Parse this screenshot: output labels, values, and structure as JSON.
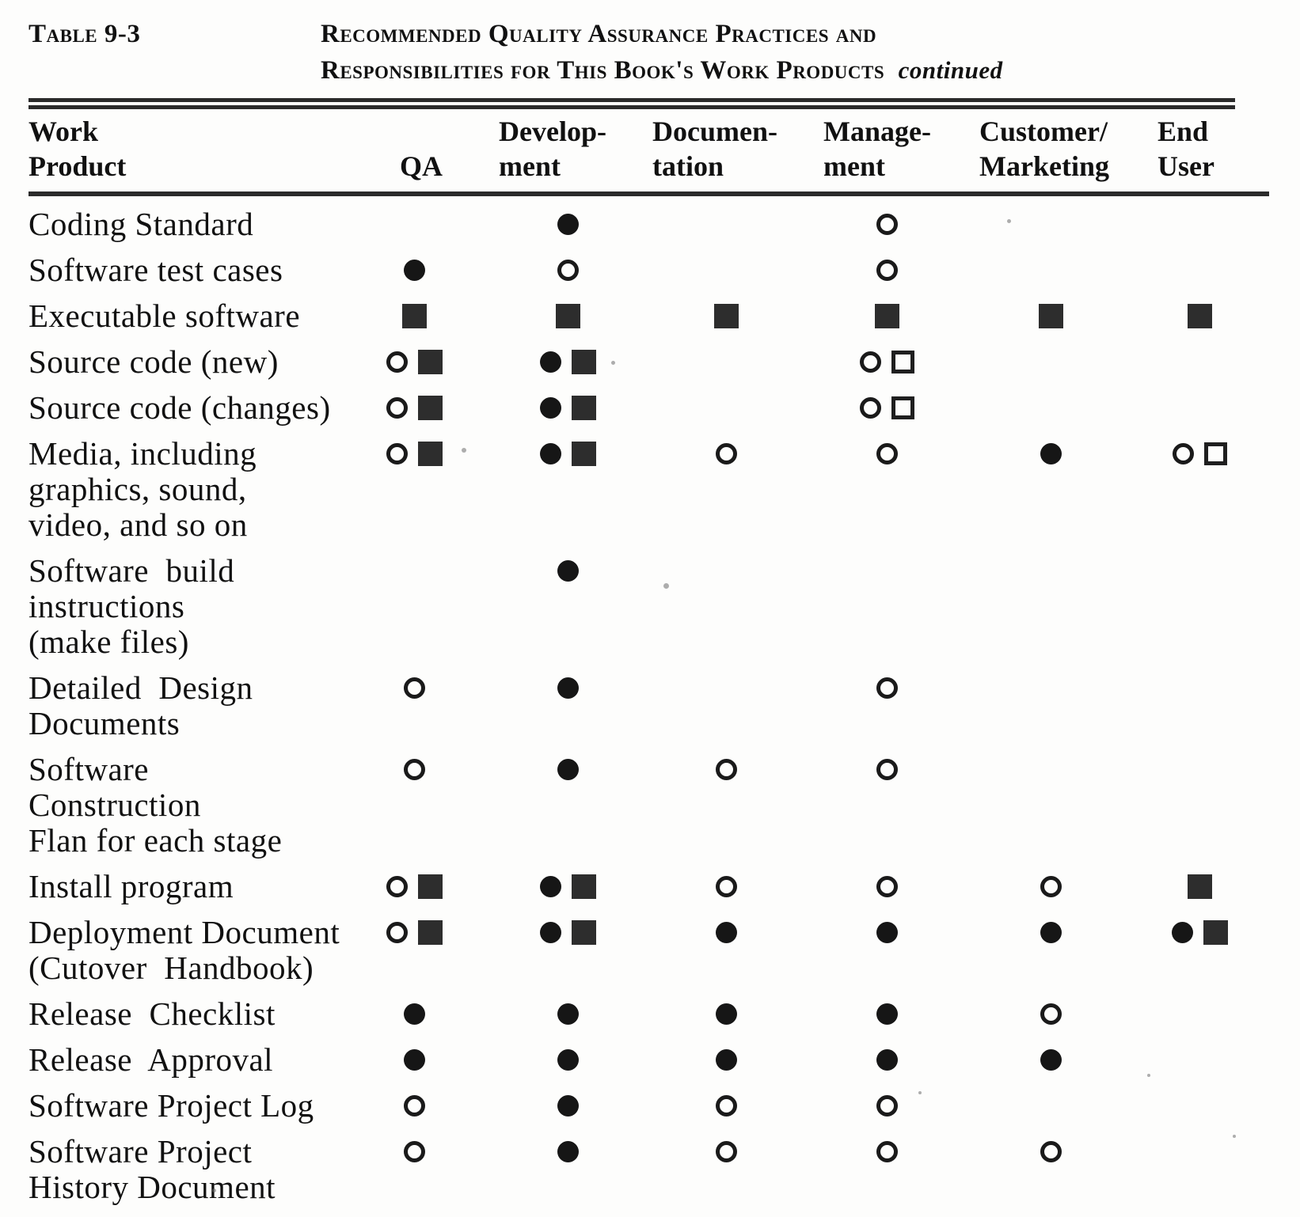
{
  "table_label": "Table 9-3",
  "title": {
    "line1": "Recommended Quality Assurance Practices and",
    "line2": "Responsibilities for This Book's Work Products",
    "continued": "continued"
  },
  "columns": [
    {
      "id": "work_product",
      "line1": "Work",
      "line2": "Product"
    },
    {
      "id": "qa",
      "line1": "",
      "line2": "QA"
    },
    {
      "id": "development",
      "line1": "Develop-",
      "line2": "ment"
    },
    {
      "id": "documentation",
      "line1": "Documen-",
      "line2": "tation"
    },
    {
      "id": "management",
      "line1": "Manage-",
      "line2": "ment"
    },
    {
      "id": "customer_marketing",
      "line1": "Customer/",
      "line2": "Marketing"
    },
    {
      "id": "end_user",
      "line1": "End",
      "line2": "User"
    }
  ],
  "symbol_glyphs": {
    "filled-circle": "●",
    "open-circle": "○",
    "filled-square": "■",
    "open-square": "□"
  },
  "rows": [
    {
      "label_lines": [
        "Coding Standard"
      ],
      "cells": {
        "qa": [],
        "development": [
          "filled-circle"
        ],
        "documentation": [],
        "management": [
          "open-circle"
        ],
        "customer_marketing": [],
        "end_user": []
      }
    },
    {
      "label_lines": [
        "Software test cases"
      ],
      "cells": {
        "qa": [
          "filled-circle"
        ],
        "development": [
          "open-circle"
        ],
        "documentation": [],
        "management": [
          "open-circle"
        ],
        "customer_marketing": [],
        "end_user": []
      }
    },
    {
      "label_lines": [
        "Executable software"
      ],
      "cells": {
        "qa": [
          "filled-square"
        ],
        "development": [
          "filled-square"
        ],
        "documentation": [
          "filled-square"
        ],
        "management": [
          "filled-square"
        ],
        "customer_marketing": [
          "filled-square"
        ],
        "end_user": [
          "filled-square"
        ]
      }
    },
    {
      "label_lines": [
        "Source code (new)"
      ],
      "cells": {
        "qa": [
          "open-circle",
          "filled-square"
        ],
        "development": [
          "filled-circle",
          "filled-square"
        ],
        "documentation": [],
        "management": [
          "open-circle",
          "open-square"
        ],
        "customer_marketing": [],
        "end_user": []
      }
    },
    {
      "label_lines": [
        "Source code (changes)"
      ],
      "cells": {
        "qa": [
          "open-circle",
          "filled-square"
        ],
        "development": [
          "filled-circle",
          "filled-square"
        ],
        "documentation": [],
        "management": [
          "open-circle",
          "open-square"
        ],
        "customer_marketing": [],
        "end_user": []
      }
    },
    {
      "label_lines": [
        "Media, including",
        "graphics, sound,",
        "video, and so on"
      ],
      "cells": {
        "qa": [
          "open-circle",
          "filled-square"
        ],
        "development": [
          "filled-circle",
          "filled-square"
        ],
        "documentation": [
          "open-circle"
        ],
        "management": [
          "open-circle"
        ],
        "customer_marketing": [
          "filled-circle"
        ],
        "end_user": [
          "open-circle",
          "open-square"
        ]
      }
    },
    {
      "label_lines": [
        "Software  build",
        "instructions",
        "(make files)"
      ],
      "cells": {
        "qa": [],
        "development": [
          "filled-circle"
        ],
        "documentation": [],
        "management": [],
        "customer_marketing": [],
        "end_user": []
      }
    },
    {
      "label_lines": [
        "Detailed  Design",
        "Documents"
      ],
      "cells": {
        "qa": [
          "open-circle"
        ],
        "development": [
          "filled-circle"
        ],
        "documentation": [],
        "management": [
          "open-circle"
        ],
        "customer_marketing": [],
        "end_user": []
      }
    },
    {
      "label_lines": [
        "Software   Construction",
        "Flan for each stage"
      ],
      "cells": {
        "qa": [
          "open-circle"
        ],
        "development": [
          "filled-circle"
        ],
        "documentation": [
          "open-circle"
        ],
        "management": [
          "open-circle"
        ],
        "customer_marketing": [],
        "end_user": []
      }
    },
    {
      "label_lines": [
        "Install program"
      ],
      "cells": {
        "qa": [
          "open-circle",
          "filled-square"
        ],
        "development": [
          "filled-circle",
          "filled-square"
        ],
        "documentation": [
          "open-circle"
        ],
        "management": [
          "open-circle"
        ],
        "customer_marketing": [
          "open-circle"
        ],
        "end_user": [
          "filled-square"
        ]
      }
    },
    {
      "label_lines": [
        "Deployment Document",
        "(Cutover  Handbook)"
      ],
      "cells": {
        "qa": [
          "open-circle",
          "filled-square"
        ],
        "development": [
          "filled-circle",
          "filled-square"
        ],
        "documentation": [
          "filled-circle"
        ],
        "management": [
          "filled-circle"
        ],
        "customer_marketing": [
          "filled-circle"
        ],
        "end_user": [
          "filled-circle",
          "filled-square"
        ]
      }
    },
    {
      "label_lines": [
        "Release  Checklist"
      ],
      "cells": {
        "qa": [
          "filled-circle"
        ],
        "development": [
          "filled-circle"
        ],
        "documentation": [
          "filled-circle"
        ],
        "management": [
          "filled-circle"
        ],
        "customer_marketing": [
          "open-circle"
        ],
        "end_user": []
      }
    },
    {
      "label_lines": [
        "Release  Approval"
      ],
      "cells": {
        "qa": [
          "filled-circle"
        ],
        "development": [
          "filled-circle"
        ],
        "documentation": [
          "filled-circle"
        ],
        "management": [
          "filled-circle"
        ],
        "customer_marketing": [
          "filled-circle"
        ],
        "end_user": []
      }
    },
    {
      "label_lines": [
        "Software Project Log"
      ],
      "cells": {
        "qa": [
          "open-circle"
        ],
        "development": [
          "filled-circle"
        ],
        "documentation": [
          "open-circle"
        ],
        "management": [
          "open-circle"
        ],
        "customer_marketing": [],
        "end_user": []
      }
    },
    {
      "label_lines": [
        "Software Project",
        "History Document"
      ],
      "cells": {
        "qa": [
          "open-circle"
        ],
        "development": [
          "filled-circle"
        ],
        "documentation": [
          "open-circle"
        ],
        "management": [
          "open-circle"
        ],
        "customer_marketing": [
          "open-circle"
        ],
        "end_user": []
      }
    }
  ]
}
